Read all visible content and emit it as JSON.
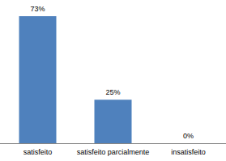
{
  "chart_data": {
    "type": "bar",
    "categories": [
      "satisfeito",
      "satisfeito parcialmente",
      "insatisfeito"
    ],
    "values": [
      73,
      25,
      0
    ],
    "value_labels": [
      "73%",
      "25%",
      "0%"
    ],
    "color": "#4f81bd",
    "data_labels": true,
    "grid": false,
    "tick_labels": "x"
  }
}
